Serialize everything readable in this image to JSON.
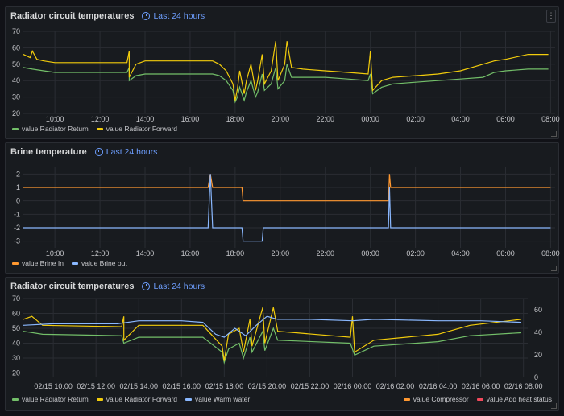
{
  "colors": {
    "green": "#73bf69",
    "yellow": "#f2cc0c",
    "blue": "#8ab8ff",
    "orange": "#ff9830",
    "red": "#f2495c",
    "grid": "#2a2d33"
  },
  "panels": [
    {
      "title": "Radiator circuit temperatures",
      "time_range": "Last 24 hours"
    },
    {
      "title": "Brine temperature",
      "time_range": "Last 24 hours"
    },
    {
      "title": "Radiator circuit temperatures",
      "time_range": "Last 24 hours"
    }
  ],
  "chart_data": [
    {
      "type": "line",
      "y_ticks": [
        "70",
        "60",
        "50",
        "40",
        "30",
        "20"
      ],
      "ylim": [
        20,
        70
      ],
      "x_ticks": [
        "10:00",
        "12:00",
        "14:00",
        "16:00",
        "18:00",
        "20:00",
        "22:00",
        "00:00",
        "02:00",
        "04:00",
        "06:00",
        "08:00"
      ],
      "series": [
        {
          "name": "value Radiator Return",
          "color": "#73bf69",
          "points": [
            [
              8.6,
              48
            ],
            [
              9.0,
              47
            ],
            [
              9.5,
              46
            ],
            [
              10,
              45
            ],
            [
              11,
              45
            ],
            [
              12,
              45
            ],
            [
              13.2,
              45
            ],
            [
              13.3,
              48
            ],
            [
              13.3,
              40
            ],
            [
              13.6,
              43
            ],
            [
              14,
              44
            ],
            [
              15,
              44
            ],
            [
              16,
              44
            ],
            [
              17,
              44
            ],
            [
              17.3,
              43
            ],
            [
              17.6,
              40
            ],
            [
              17.9,
              34
            ],
            [
              18.0,
              27
            ],
            [
              18.1,
              30
            ],
            [
              18.2,
              36
            ],
            [
              18.4,
              28
            ],
            [
              18.5,
              33
            ],
            [
              18.7,
              40
            ],
            [
              18.9,
              30
            ],
            [
              19.0,
              33
            ],
            [
              19.2,
              44
            ],
            [
              19.3,
              34
            ],
            [
              19.6,
              38
            ],
            [
              19.8,
              48
            ],
            [
              19.9,
              35
            ],
            [
              20.2,
              40
            ],
            [
              20.3,
              50
            ],
            [
              20.5,
              42
            ],
            [
              21,
              42
            ],
            [
              22,
              42
            ],
            [
              23,
              41
            ],
            [
              23.9,
              40
            ],
            [
              24.0,
              44
            ],
            [
              24.1,
              32
            ],
            [
              24.5,
              36
            ],
            [
              25,
              38
            ],
            [
              26,
              39
            ],
            [
              27,
              40
            ],
            [
              28,
              41
            ],
            [
              29,
              42
            ],
            [
              29.5,
              45
            ],
            [
              30,
              46
            ],
            [
              31,
              47
            ],
            [
              31.9,
              47
            ]
          ]
        },
        {
          "name": "value Radiator Forward",
          "color": "#f2cc0c",
          "points": [
            [
              8.6,
              56
            ],
            [
              8.9,
              54
            ],
            [
              9.0,
              58
            ],
            [
              9.2,
              53
            ],
            [
              9.5,
              52
            ],
            [
              10,
              51
            ],
            [
              11,
              51
            ],
            [
              12,
              51
            ],
            [
              13.2,
              51
            ],
            [
              13.3,
              58
            ],
            [
              13.3,
              42
            ],
            [
              13.6,
              50
            ],
            [
              14,
              52
            ],
            [
              15,
              52
            ],
            [
              16,
              52
            ],
            [
              17,
              52
            ],
            [
              17.3,
              50
            ],
            [
              17.6,
              46
            ],
            [
              17.9,
              38
            ],
            [
              18.0,
              28
            ],
            [
              18.1,
              35
            ],
            [
              18.2,
              46
            ],
            [
              18.4,
              32
            ],
            [
              18.5,
              40
            ],
            [
              18.7,
              50
            ],
            [
              18.9,
              34
            ],
            [
              19.0,
              40
            ],
            [
              19.2,
              56
            ],
            [
              19.3,
              38
            ],
            [
              19.6,
              46
            ],
            [
              19.8,
              64
            ],
            [
              19.9,
              40
            ],
            [
              20.2,
              50
            ],
            [
              20.3,
              64
            ],
            [
              20.5,
              48
            ],
            [
              21,
              47
            ],
            [
              22,
              46
            ],
            [
              23,
              45
            ],
            [
              23.9,
              44
            ],
            [
              24.0,
              58
            ],
            [
              24.1,
              34
            ],
            [
              24.5,
              40
            ],
            [
              25,
              42
            ],
            [
              26,
              43
            ],
            [
              27,
              44
            ],
            [
              28,
              46
            ],
            [
              29,
              50
            ],
            [
              29.5,
              52
            ],
            [
              30,
              53
            ],
            [
              31,
              56
            ],
            [
              31.9,
              56
            ]
          ]
        }
      ]
    },
    {
      "type": "line",
      "y_ticks": [
        "2",
        "1",
        "0",
        "-1",
        "-2",
        "-3"
      ],
      "ylim": [
        -3.5,
        2.5
      ],
      "x_ticks": [
        "10:00",
        "12:00",
        "14:00",
        "16:00",
        "18:00",
        "20:00",
        "22:00",
        "00:00",
        "02:00",
        "04:00",
        "06:00",
        "08:00"
      ],
      "series": [
        {
          "name": "value Brine In",
          "color": "#ff9830",
          "points": [
            [
              8.6,
              1
            ],
            [
              16.8,
              1
            ],
            [
              16.9,
              2
            ],
            [
              17.0,
              1
            ],
            [
              18.3,
              1
            ],
            [
              18.35,
              0
            ],
            [
              24.8,
              0
            ],
            [
              24.85,
              2
            ],
            [
              24.9,
              1
            ],
            [
              32,
              1
            ]
          ]
        },
        {
          "name": "value Brine out",
          "color": "#8ab8ff",
          "points": [
            [
              8.6,
              -2
            ],
            [
              16.8,
              -2
            ],
            [
              16.9,
              2
            ],
            [
              17.0,
              -2
            ],
            [
              18.3,
              -2
            ],
            [
              18.35,
              -3
            ],
            [
              19.2,
              -3
            ],
            [
              19.25,
              -2
            ],
            [
              24.8,
              -2
            ],
            [
              24.85,
              1
            ],
            [
              24.9,
              -2
            ],
            [
              32,
              -2
            ]
          ]
        }
      ]
    },
    {
      "type": "line",
      "y_ticks": [
        "70",
        "60",
        "50",
        "40",
        "30",
        "20"
      ],
      "ylim": [
        17,
        70
      ],
      "y2_ticks": [
        "60",
        "40",
        "20",
        "0"
      ],
      "x_ticks": [
        "02/15 10:00",
        "02/15 12:00",
        "02/15 14:00",
        "02/15 16:00",
        "02/15 18:00",
        "02/15 20:00",
        "02/15 22:00",
        "02/16 00:00",
        "02/16 02:00",
        "02/16 04:00",
        "02/16 06:00",
        "02/16 08:00"
      ],
      "series": [
        {
          "name": "value Radiator Return",
          "color": "#73bf69",
          "points": [
            [
              8.6,
              48
            ],
            [
              9.5,
              46
            ],
            [
              13.2,
              45
            ],
            [
              13.3,
              40
            ],
            [
              14,
              44
            ],
            [
              17,
              44
            ],
            [
              17.9,
              34
            ],
            [
              18.0,
              27
            ],
            [
              18.2,
              36
            ],
            [
              18.7,
              40
            ],
            [
              18.9,
              30
            ],
            [
              19.2,
              44
            ],
            [
              19.3,
              34
            ],
            [
              19.8,
              48
            ],
            [
              19.9,
              35
            ],
            [
              20.3,
              50
            ],
            [
              20.5,
              42
            ],
            [
              23.9,
              40
            ],
            [
              24.1,
              32
            ],
            [
              25,
              38
            ],
            [
              28,
              41
            ],
            [
              29.5,
              45
            ],
            [
              31.9,
              47
            ]
          ]
        },
        {
          "name": "value Radiator Forward",
          "color": "#f2cc0c",
          "points": [
            [
              8.6,
              56
            ],
            [
              9.0,
              58
            ],
            [
              9.5,
              52
            ],
            [
              13.2,
              51
            ],
            [
              13.3,
              58
            ],
            [
              13.3,
              42
            ],
            [
              14,
              52
            ],
            [
              17,
              52
            ],
            [
              17.9,
              38
            ],
            [
              18.0,
              28
            ],
            [
              18.2,
              46
            ],
            [
              18.7,
              50
            ],
            [
              18.9,
              34
            ],
            [
              19.2,
              56
            ],
            [
              19.3,
              38
            ],
            [
              19.8,
              64
            ],
            [
              19.9,
              40
            ],
            [
              20.3,
              64
            ],
            [
              20.5,
              48
            ],
            [
              23.9,
              44
            ],
            [
              24.0,
              58
            ],
            [
              24.1,
              34
            ],
            [
              25,
              42
            ],
            [
              28,
              46
            ],
            [
              29.5,
              52
            ],
            [
              31.9,
              56
            ]
          ]
        },
        {
          "name": "value Warm water",
          "color": "#8ab8ff",
          "points": [
            [
              8.6,
              52
            ],
            [
              10,
              53
            ],
            [
              13,
              53
            ],
            [
              14,
              55
            ],
            [
              16,
              55
            ],
            [
              17,
              54
            ],
            [
              17.6,
              46
            ],
            [
              18,
              44
            ],
            [
              18.5,
              50
            ],
            [
              19,
              45
            ],
            [
              19.5,
              52
            ],
            [
              20,
              58
            ],
            [
              20.5,
              56
            ],
            [
              22,
              56
            ],
            [
              24,
              55
            ],
            [
              25,
              56
            ],
            [
              28,
              55
            ],
            [
              30,
              55
            ],
            [
              31.9,
              54
            ]
          ]
        }
      ]
    }
  ],
  "legends": [
    [
      {
        "label": "value Radiator Return",
        "color": "#73bf69"
      },
      {
        "label": "value Radiator Forward",
        "color": "#f2cc0c"
      }
    ],
    [
      {
        "label": "value Brine In",
        "color": "#ff9830"
      },
      {
        "label": "value Brine out",
        "color": "#8ab8ff"
      }
    ],
    [
      {
        "label": "value Radiator Return",
        "color": "#73bf69"
      },
      {
        "label": "value Radiator Forward",
        "color": "#f2cc0c"
      },
      {
        "label": "value Warm water",
        "color": "#8ab8ff"
      }
    ]
  ],
  "legend_right": [
    {
      "label": "value Compressor",
      "color": "#ff9830"
    },
    {
      "label": "value Add heat status",
      "color": "#f2495c"
    }
  ]
}
